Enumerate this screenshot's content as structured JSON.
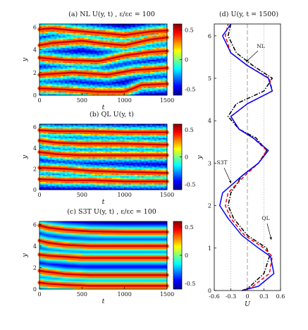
{
  "colormap": [
    "#00008f",
    "#0000ff",
    "#0080ff",
    "#00ffff",
    "#80ff80",
    "#ffff00",
    "#ff8000",
    "#ff0000",
    "#800000"
  ],
  "chart_data": [
    {
      "type": "heatmap",
      "id": "a",
      "title": "(a)     NL   U(y, t)   ,  ε/εc = 100",
      "xlabel": "t",
      "ylabel": "y",
      "xlim": [
        0,
        1500
      ],
      "ylim": [
        0,
        6.28
      ],
      "xticks": [
        "0",
        "500",
        "1000",
        "1500"
      ],
      "yticks": [
        "0",
        "2",
        "4",
        "6"
      ],
      "colorbar": {
        "range": [
          -0.6,
          0.6
        ],
        "ticks": [
          "0.5",
          "0",
          "-0.5"
        ]
      },
      "jets": [
        {
          "t": [
            0,
            150,
            400,
            700,
            1000,
            1300,
            1500
          ],
          "y": [
            5.8,
            5.9,
            5.7,
            5.5,
            5.3,
            5.6,
            5.7
          ]
        },
        {
          "t": [
            0,
            150,
            500,
            700,
            1000,
            1300,
            1500
          ],
          "y": [
            4.4,
            4.6,
            4.8,
            4.6,
            4.4,
            4.9,
            5.1
          ]
        },
        {
          "t": [
            0,
            300,
            700,
            1000,
            1300,
            1500
          ],
          "y": [
            3.3,
            3.1,
            3.0,
            3.5,
            3.8,
            3.9
          ]
        },
        {
          "t": [
            0,
            400,
            800,
            1100,
            1500
          ],
          "y": [
            1.8,
            2.0,
            1.8,
            2.2,
            2.4
          ]
        },
        {
          "t": [
            0,
            300,
            700,
            1000,
            1200,
            1500
          ],
          "y": [
            0.6,
            0.5,
            0.3,
            0.3,
            0.9,
            1.0
          ]
        }
      ]
    },
    {
      "type": "heatmap",
      "id": "b",
      "title": "(b)     QL   U(y, t)",
      "xlabel": "t",
      "ylabel": "y",
      "xlim": [
        0,
        1500
      ],
      "ylim": [
        0,
        6.28
      ],
      "xticks": [
        "0",
        "500",
        "1000",
        "1500"
      ],
      "yticks": [
        "0",
        "2",
        "4",
        "6"
      ],
      "colorbar": {
        "range": [
          -0.6,
          0.6
        ],
        "ticks": [
          "0.5",
          "0",
          "-0.5"
        ]
      },
      "jets": [
        {
          "t": [
            0,
            200,
            500,
            1000,
            1500
          ],
          "y": [
            5.7,
            5.6,
            5.6,
            5.5,
            5.5
          ]
        },
        {
          "t": [
            0,
            200,
            500,
            1000,
            1500
          ],
          "y": [
            4.7,
            4.5,
            4.4,
            4.4,
            4.3
          ]
        },
        {
          "t": [
            0,
            200,
            500,
            1000,
            1500
          ],
          "y": [
            3.6,
            3.4,
            3.3,
            3.3,
            3.3
          ]
        },
        {
          "t": [
            0,
            300,
            600,
            1000,
            1500
          ],
          "y": [
            2.1,
            2.0,
            1.8,
            1.7,
            1.6
          ]
        },
        {
          "t": [
            0,
            300,
            600,
            1000,
            1500
          ],
          "y": [
            1.0,
            0.9,
            0.9,
            0.8,
            0.8
          ]
        }
      ]
    },
    {
      "type": "heatmap",
      "id": "c",
      "title": "(c)     S3T   U(y, t)   ,  ε/εc = 100",
      "xlabel": "t",
      "ylabel": "y",
      "xlim": [
        0,
        1500
      ],
      "ylim": [
        0,
        6.28
      ],
      "xticks": [
        "0",
        "500",
        "1000",
        "1500"
      ],
      "yticks": [
        "0",
        "2",
        "4",
        "6"
      ],
      "colorbar": {
        "range": [
          -0.6,
          0.6
        ],
        "ticks": [
          "0.5",
          "0",
          "-0.5"
        ]
      },
      "jets": [
        {
          "t": [
            0,
            100,
            300,
            600,
            1000,
            1500
          ],
          "y": [
            5.9,
            5.7,
            5.5,
            5.35,
            5.3,
            5.3
          ]
        },
        {
          "t": [
            0,
            100,
            300,
            600,
            1000,
            1500
          ],
          "y": [
            4.5,
            4.3,
            4.1,
            4.0,
            4.0,
            4.0
          ]
        },
        {
          "t": [
            0,
            100,
            300,
            500,
            1000,
            1500
          ],
          "y": [
            3.2,
            3.1,
            3.0,
            2.9,
            2.9,
            2.9
          ]
        },
        {
          "t": [
            0,
            100,
            300,
            600,
            1000,
            1500
          ],
          "y": [
            1.7,
            1.6,
            1.4,
            1.3,
            1.3,
            1.3
          ]
        },
        {
          "t": [
            0,
            100,
            300,
            600,
            1000,
            1500
          ],
          "y": [
            0.6,
            0.5,
            0.4,
            0.3,
            0.3,
            0.3
          ]
        }
      ]
    },
    {
      "type": "line",
      "id": "d",
      "title": "(d)   U(y, t = 1500)",
      "xlabel": "U",
      "ylabel": "y",
      "xlim": [
        -0.6,
        0.6
      ],
      "ylim": [
        0,
        6.28
      ],
      "xticks": [
        "-0.6",
        "-0.3",
        "0",
        "0.3",
        "0.6"
      ],
      "yticks": [
        "0",
        "1",
        "2",
        "3",
        "4",
        "5",
        "6"
      ],
      "grid": "vertical dotted",
      "y": [
        0,
        0.1,
        0.4,
        0.8,
        1.0,
        1.3,
        1.7,
        2.0,
        2.3,
        2.7,
        3.0,
        3.3,
        3.6,
        3.8,
        4.1,
        4.4,
        4.7,
        5.0,
        5.3,
        5.6,
        6.0,
        6.28
      ],
      "series": [
        {
          "name": "NL",
          "color": "#000000",
          "dash": "dashdot",
          "values": [
            -0.05,
            0.05,
            0.3,
            0.4,
            0.35,
            0.0,
            -0.25,
            -0.35,
            -0.3,
            -0.1,
            0.2,
            0.35,
            0.15,
            -0.15,
            -0.35,
            -0.2,
            0.3,
            0.45,
            0.1,
            -0.2,
            -0.35,
            -0.3
          ]
        },
        {
          "name": "QL",
          "color": "#ff0000",
          "dash": "dashed",
          "values": [
            -0.1,
            0.1,
            0.4,
            0.45,
            0.3,
            -0.05,
            -0.3,
            -0.4,
            -0.35,
            -0.05,
            0.2,
            0.35,
            0.1,
            -0.15,
            -0.3,
            0.0,
            0.45,
            0.4,
            0.0,
            -0.3,
            -0.4,
            -0.35
          ]
        },
        {
          "name": "S3T",
          "color": "#0000ff",
          "dash": "solid",
          "values": [
            -0.1,
            0.2,
            0.48,
            0.42,
            0.2,
            -0.1,
            -0.35,
            -0.5,
            -0.45,
            -0.1,
            0.2,
            0.38,
            0.1,
            -0.15,
            -0.3,
            0.0,
            0.45,
            0.38,
            0.0,
            -0.3,
            -0.45,
            -0.3
          ]
        }
      ],
      "annotations": [
        "NL",
        "S3T",
        "QL"
      ]
    }
  ]
}
